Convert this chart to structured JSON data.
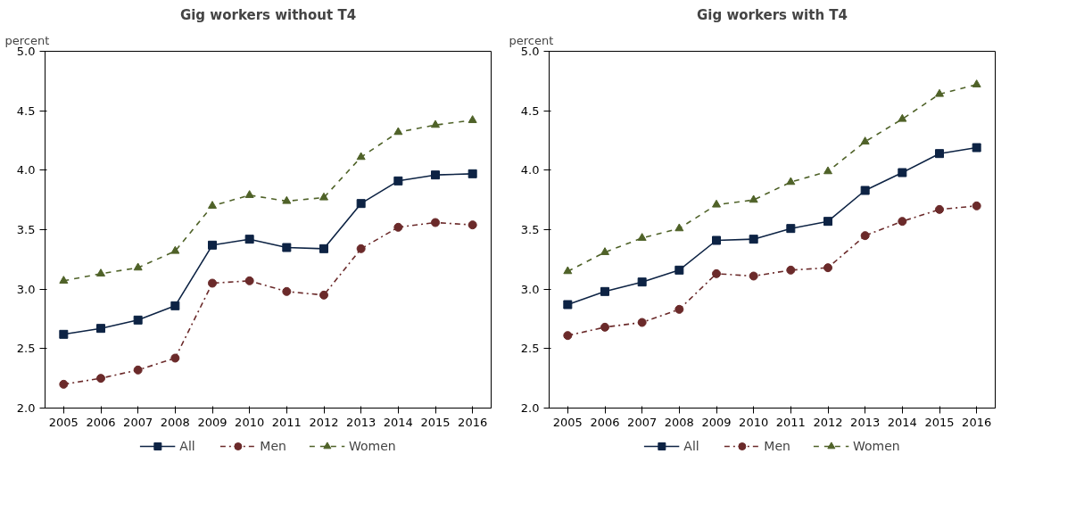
{
  "chart_data": [
    {
      "type": "line",
      "title": "Gig workers without T4",
      "ylabel": "percent",
      "categories": [
        "2005",
        "2006",
        "2007",
        "2008",
        "2009",
        "2010",
        "2011",
        "2012",
        "2013",
        "2014",
        "2015",
        "2016"
      ],
      "ylim": [
        2.0,
        5.0
      ],
      "yticks": [
        {
          "value": 2.0,
          "label": "2.0"
        },
        {
          "value": 2.5,
          "label": "2.5"
        },
        {
          "value": 3.0,
          "label": "3.0"
        },
        {
          "value": 3.5,
          "label": "3.5"
        },
        {
          "value": 4.0,
          "label": "4.0"
        },
        {
          "value": 4.5,
          "label": "4.5"
        },
        {
          "value": 5.0,
          "label": "5.0"
        }
      ],
      "grid": false,
      "legend": "bottom",
      "series": [
        {
          "name": "All",
          "color": "#0d2344",
          "marker": "square",
          "line_style": "solid",
          "values": [
            2.62,
            2.67,
            2.74,
            2.86,
            3.37,
            3.42,
            3.35,
            3.34,
            3.72,
            3.91,
            3.96,
            3.97
          ]
        },
        {
          "name": "Men",
          "color": "#6b2a2a",
          "marker": "circle",
          "line_style": "dashdot",
          "values": [
            2.2,
            2.25,
            2.32,
            2.42,
            3.05,
            3.07,
            2.98,
            2.95,
            3.34,
            3.52,
            3.56,
            3.54
          ]
        },
        {
          "name": "Women",
          "color": "#4f6228",
          "marker": "triangle",
          "line_style": "dashed",
          "values": [
            3.07,
            3.13,
            3.18,
            3.32,
            3.7,
            3.79,
            3.74,
            3.77,
            4.11,
            4.32,
            4.38,
            4.42
          ]
        }
      ]
    },
    {
      "type": "line",
      "title": "Gig workers with T4",
      "ylabel": "percent",
      "categories": [
        "2005",
        "2006",
        "2007",
        "2008",
        "2009",
        "2010",
        "2011",
        "2012",
        "2013",
        "2014",
        "2015",
        "2016"
      ],
      "ylim": [
        2.0,
        5.0
      ],
      "yticks": [
        {
          "value": 2.0,
          "label": "2.0"
        },
        {
          "value": 2.5,
          "label": "2.5"
        },
        {
          "value": 3.0,
          "label": "3.0"
        },
        {
          "value": 3.5,
          "label": "3.5"
        },
        {
          "value": 4.0,
          "label": "4.0"
        },
        {
          "value": 4.5,
          "label": "4.5"
        },
        {
          "value": 5.0,
          "label": "5.0"
        }
      ],
      "grid": false,
      "legend": "bottom",
      "series": [
        {
          "name": "All",
          "color": "#0d2344",
          "marker": "square",
          "line_style": "solid",
          "values": [
            2.87,
            2.98,
            3.06,
            3.16,
            3.41,
            3.42,
            3.51,
            3.57,
            3.83,
            3.98,
            4.14,
            4.19
          ]
        },
        {
          "name": "Men",
          "color": "#6b2a2a",
          "marker": "circle",
          "line_style": "dashdot",
          "values": [
            2.61,
            2.68,
            2.72,
            2.83,
            3.13,
            3.11,
            3.16,
            3.18,
            3.45,
            3.57,
            3.67,
            3.7
          ]
        },
        {
          "name": "Women",
          "color": "#4f6228",
          "marker": "triangle",
          "line_style": "dashed",
          "values": [
            3.15,
            3.31,
            3.43,
            3.51,
            3.71,
            3.75,
            3.9,
            3.99,
            4.24,
            4.43,
            4.64,
            4.72
          ]
        }
      ]
    }
  ]
}
